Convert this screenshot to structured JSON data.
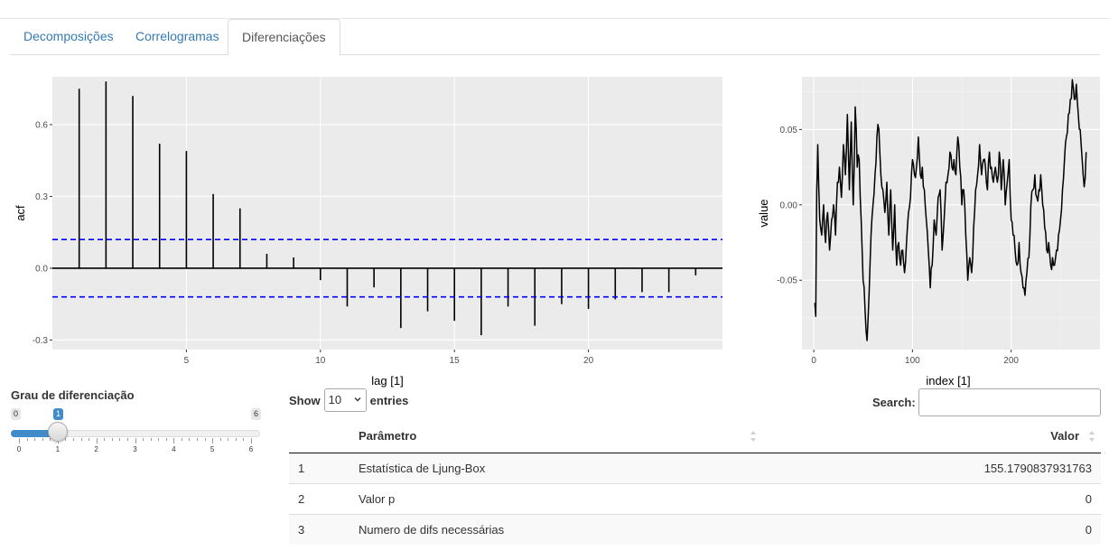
{
  "tabs": [
    {
      "label": "Decomposições",
      "active": false
    },
    {
      "label": "Correlogramas",
      "active": false
    },
    {
      "label": "Diferenciações",
      "active": true
    }
  ],
  "acf_plot": {
    "chart_data": {
      "type": "bar",
      "xlabel": "lag [1]",
      "ylabel": "acf",
      "xlim": [
        0,
        25
      ],
      "ylim": [
        -0.34,
        0.8
      ],
      "x_ticks": [
        5,
        10,
        15,
        20
      ],
      "y_ticks": [
        -0.3,
        0.0,
        0.3,
        0.6
      ],
      "y_tick_labels": [
        "-0.3",
        "0.0",
        "0.3",
        "0.6"
      ],
      "confidence_bounds": [
        0.12,
        -0.12
      ],
      "lags": [
        1,
        2,
        3,
        4,
        5,
        6,
        7,
        8,
        9,
        10,
        11,
        12,
        13,
        14,
        15,
        16,
        17,
        18,
        19,
        20,
        21,
        22,
        23,
        24
      ],
      "values": [
        0.75,
        0.78,
        0.72,
        0.52,
        0.49,
        0.31,
        0.25,
        0.06,
        0.045,
        -0.05,
        -0.16,
        -0.08,
        -0.25,
        -0.18,
        -0.22,
        -0.28,
        -0.16,
        -0.24,
        -0.15,
        -0.17,
        -0.13,
        -0.1,
        -0.1,
        -0.03
      ],
      "grid": true,
      "colors": {
        "panel": "#ebebeb",
        "bar": "#000000",
        "bound": "#0000ff",
        "grid": "#ffffff"
      }
    }
  },
  "series_plot": {
    "chart_data": {
      "type": "line",
      "xlabel": "index [1]",
      "ylabel": "value",
      "xlim": [
        -12,
        290
      ],
      "ylim": [
        -0.096,
        0.085
      ],
      "x_ticks": [
        0,
        100,
        200
      ],
      "y_ticks": [
        -0.05,
        0.0,
        0.05
      ],
      "y_tick_labels": [
        "-0.05",
        "0.00",
        "0.05"
      ],
      "grid": true,
      "anchors": [
        [
          1,
          -0.065
        ],
        [
          2,
          -0.074
        ],
        [
          3,
          0.01
        ],
        [
          4,
          0.04
        ],
        [
          6,
          -0.01
        ],
        [
          8,
          -0.02
        ],
        [
          10,
          0.0
        ],
        [
          12,
          -0.025
        ],
        [
          14,
          -0.005
        ],
        [
          16,
          -0.03
        ],
        [
          18,
          -0.01
        ],
        [
          20,
          0.0
        ],
        [
          22,
          -0.02
        ],
        [
          24,
          0.015
        ],
        [
          26,
          0.025
        ],
        [
          28,
          0.005
        ],
        [
          30,
          0.04
        ],
        [
          32,
          0.02
        ],
        [
          34,
          0.06
        ],
        [
          36,
          0.01
        ],
        [
          38,
          0.055
        ],
        [
          40,
          0.0
        ],
        [
          42,
          0.065
        ],
        [
          44,
          0.025
        ],
        [
          46,
          0.03
        ],
        [
          48,
          -0.01
        ],
        [
          50,
          -0.05
        ],
        [
          52,
          -0.07
        ],
        [
          54,
          -0.09
        ],
        [
          56,
          -0.06
        ],
        [
          58,
          -0.02
        ],
        [
          60,
          0.0
        ],
        [
          62,
          0.02
        ],
        [
          64,
          0.045
        ],
        [
          66,
          0.05
        ],
        [
          68,
          0.02
        ],
        [
          70,
          0.01
        ],
        [
          72,
          -0.005
        ],
        [
          74,
          0.015
        ],
        [
          76,
          -0.02
        ],
        [
          78,
          0.01
        ],
        [
          80,
          -0.03
        ],
        [
          82,
          0.0
        ],
        [
          84,
          -0.04
        ],
        [
          86,
          -0.025
        ],
        [
          88,
          -0.04
        ],
        [
          90,
          -0.03
        ],
        [
          92,
          -0.045
        ],
        [
          94,
          -0.025
        ],
        [
          96,
          -0.005
        ],
        [
          98,
          0.005
        ],
        [
          100,
          0.03
        ],
        [
          102,
          0.02
        ],
        [
          104,
          0.025
        ],
        [
          106,
          0.045
        ],
        [
          108,
          0.02
        ],
        [
          110,
          0.025
        ],
        [
          112,
          0.01
        ],
        [
          114,
          -0.01
        ],
        [
          116,
          -0.03
        ],
        [
          118,
          -0.055
        ],
        [
          120,
          -0.04
        ],
        [
          122,
          -0.01
        ],
        [
          124,
          -0.02
        ],
        [
          126,
          0.005
        ],
        [
          128,
          0.01
        ],
        [
          130,
          -0.03
        ],
        [
          132,
          -0.01
        ],
        [
          134,
          0.015
        ],
        [
          136,
          0.02
        ],
        [
          138,
          0.035
        ],
        [
          140,
          0.025
        ],
        [
          142,
          0.03
        ],
        [
          144,
          0.02
        ],
        [
          146,
          0.045
        ],
        [
          148,
          0.025
        ],
        [
          150,
          0.0
        ],
        [
          152,
          0.01
        ],
        [
          154,
          -0.02
        ],
        [
          156,
          -0.05
        ],
        [
          158,
          -0.035
        ],
        [
          160,
          -0.045
        ],
        [
          162,
          -0.015
        ],
        [
          164,
          0.01
        ],
        [
          166,
          0.02
        ],
        [
          168,
          0.04
        ],
        [
          170,
          0.02
        ],
        [
          172,
          0.03
        ],
        [
          174,
          0.025
        ],
        [
          176,
          0.01
        ],
        [
          178,
          0.035
        ],
        [
          180,
          0.025
        ],
        [
          182,
          0.015
        ],
        [
          184,
          0.025
        ],
        [
          186,
          0.015
        ],
        [
          188,
          0.035
        ],
        [
          190,
          0.01
        ],
        [
          192,
          0.03
        ],
        [
          194,
          0.0
        ],
        [
          196,
          0.015
        ],
        [
          198,
          0.03
        ],
        [
          200,
          -0.01
        ],
        [
          202,
          -0.02
        ],
        [
          204,
          -0.03
        ],
        [
          206,
          -0.04
        ],
        [
          208,
          -0.025
        ],
        [
          210,
          -0.045
        ],
        [
          212,
          -0.055
        ],
        [
          214,
          -0.06
        ],
        [
          216,
          -0.045
        ],
        [
          218,
          -0.035
        ],
        [
          220,
          0.0
        ],
        [
          222,
          0.01
        ],
        [
          224,
          0.02
        ],
        [
          226,
          0.005
        ],
        [
          228,
          0.01
        ],
        [
          230,
          0.02
        ],
        [
          232,
          0.0
        ],
        [
          234,
          -0.015
        ],
        [
          236,
          -0.03
        ],
        [
          238,
          -0.025
        ],
        [
          240,
          -0.04
        ],
        [
          242,
          -0.035
        ],
        [
          244,
          -0.04
        ],
        [
          246,
          -0.03
        ],
        [
          248,
          -0.02
        ],
        [
          250,
          -0.01
        ],
        [
          252,
          0.01
        ],
        [
          254,
          0.03
        ],
        [
          256,
          0.045
        ],
        [
          258,
          0.06
        ],
        [
          260,
          0.07
        ],
        [
          262,
          0.083
        ],
        [
          264,
          0.07
        ],
        [
          266,
          0.08
        ],
        [
          268,
          0.06
        ],
        [
          270,
          0.05
        ],
        [
          272,
          0.03
        ],
        [
          274,
          0.012
        ],
        [
          276,
          0.035
        ]
      ],
      "colors": {
        "panel": "#ebebeb",
        "line": "#000000",
        "grid": "#ffffff"
      }
    }
  },
  "slider": {
    "label": "Grau de diferenciação",
    "min": 0,
    "max": 6,
    "value": 1,
    "min_label": "0",
    "max_label": "6",
    "value_label": "1",
    "ticks": [
      "0",
      "1",
      "2",
      "3",
      "4",
      "5",
      "6"
    ]
  },
  "datatable": {
    "show_label": "Show",
    "entries_label": "entries",
    "page_length": "10",
    "search_label": "Search:",
    "search_value": "",
    "headers": [
      "",
      "Parâmetro",
      "Valor"
    ],
    "rows": [
      [
        "1",
        "Estatística de Ljung-Box",
        "155.1790837931763"
      ],
      [
        "2",
        "Valor p",
        "0"
      ],
      [
        "3",
        "Numero de difs necessárias",
        "0"
      ]
    ]
  }
}
